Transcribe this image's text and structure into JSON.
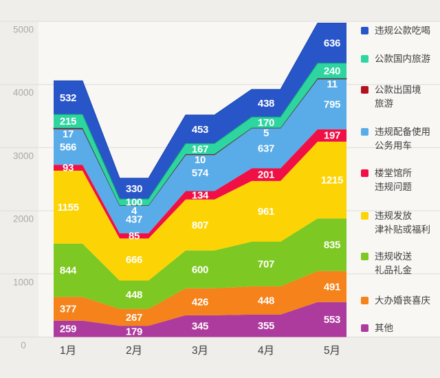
{
  "chart_data": {
    "type": "area",
    "stacked": true,
    "title": "",
    "categories": [
      "1月",
      "2月",
      "3月",
      "4月",
      "5月"
    ],
    "series": [
      {
        "name": "违规公款吃喝",
        "legend_lines": [
          "违规公款吃喝"
        ],
        "color": "#2856C8",
        "edge_color": "#1D49B2",
        "values": [
          532,
          330,
          453,
          438,
          636
        ]
      },
      {
        "name": "公款国内旅游",
        "legend_lines": [
          "公款国内旅游"
        ],
        "color": "#2FD5A0",
        "edge_color": "#14A878",
        "values": [
          215,
          100,
          167,
          170,
          240
        ]
      },
      {
        "name": "公款出国境旅游",
        "legend_lines": [
          "公款出国境",
          "旅游"
        ],
        "color": "#B01320",
        "edge_color": "#4A3A30",
        "values": [
          17,
          4,
          10,
          5,
          11
        ]
      },
      {
        "name": "违规配备使用公务用车",
        "legend_lines": [
          "违规配备使用",
          "公务用车"
        ],
        "color": "#5AACE8",
        "edge_color": "",
        "values": [
          566,
          437,
          574,
          637,
          795
        ]
      },
      {
        "name": "楼堂馆所违规问题",
        "legend_lines": [
          "楼堂馆所",
          "违规问题"
        ],
        "color": "#F01045",
        "edge_color": "",
        "values": [
          93,
          85,
          134,
          201,
          197
        ]
      },
      {
        "name": "违规发放津补贴或福利",
        "legend_lines": [
          "违规发放",
          "津补贴或福利"
        ],
        "color": "#FCD405",
        "edge_color": "",
        "values": [
          1155,
          666,
          807,
          961,
          1215
        ]
      },
      {
        "name": "违规收送礼品礼金",
        "legend_lines": [
          "违规收送",
          "礼品礼金"
        ],
        "color": "#7EC823",
        "edge_color": "",
        "values": [
          844,
          448,
          600,
          707,
          835
        ]
      },
      {
        "name": "大办婚丧喜庆",
        "legend_lines": [
          "大办婚丧喜庆"
        ],
        "color": "#F5821A",
        "edge_color": "",
        "values": [
          377,
          267,
          426,
          448,
          491
        ]
      },
      {
        "name": "其他",
        "legend_lines": [
          "其他"
        ],
        "color": "#AD3B9D",
        "edge_color": "",
        "values": [
          259,
          179,
          345,
          355,
          553
        ]
      }
    ],
    "stack_order_bottom_to_top": [
      "其他",
      "大办婚丧喜庆",
      "违规收送礼品礼金",
      "违规发放津补贴或福利",
      "楼堂馆所违规问题",
      "违规配备使用公务用车",
      "公款出国境旅游",
      "公款国内旅游",
      "违规公款吃喝"
    ],
    "xlabel": "",
    "ylabel": "",
    "y_axis": {
      "min": 0,
      "max": 5000,
      "tick_labels": [
        "0",
        "1000",
        "2000",
        "3000",
        "4000",
        "5000"
      ]
    },
    "grid": true,
    "legend_position": "right",
    "value_labels_shown": true,
    "colors": {
      "page_background": "#EFEEEB",
      "plot_background": "#F8F7F4",
      "grid_line": "#DEDCD8",
      "y_tick_label": "#ACA9A5",
      "x_tick_label": "#3C3C3C",
      "value_label": "#FFFFFF",
      "legend_text": "#3F3F3F"
    }
  }
}
